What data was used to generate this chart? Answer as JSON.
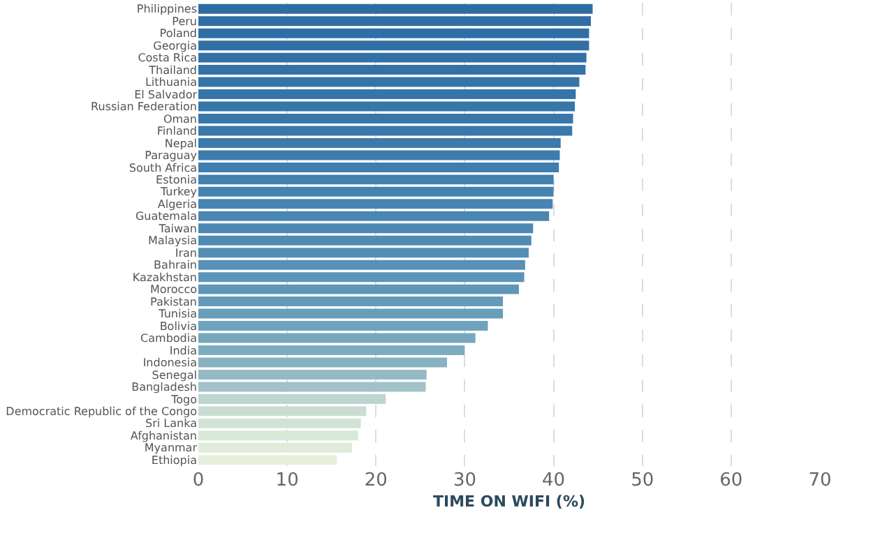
{
  "chart_data": {
    "type": "bar",
    "orientation": "horizontal",
    "xlabel": "TIME ON WIFI (%)",
    "categories": [
      "Philippines",
      "Peru",
      "Poland",
      "Georgia",
      "Costa Rica",
      "Thailand",
      "Lithuania",
      "El Salvador",
      "Russian Federation",
      "Oman",
      "Finland",
      "Nepal",
      "Paraguay",
      "South Africa",
      "Estonia",
      "Turkey",
      "Algeria",
      "Guatemala",
      "Taiwan",
      "Malaysia",
      "Iran",
      "Bahrain",
      "Kazakhstan",
      "Morocco",
      "Pakistan",
      "Tunisia",
      "Bolivia",
      "Cambodia",
      "India",
      "Indonesia",
      "Senegal",
      "Bangladesh",
      "Togo",
      "Democratic Republic of the Congo",
      "Sri Lanka",
      "Afghanistan",
      "Myanmar",
      "Ethiopia"
    ],
    "values": [
      44.4,
      44.2,
      44.0,
      44.0,
      43.7,
      43.6,
      42.9,
      42.5,
      42.4,
      42.2,
      42.1,
      40.8,
      40.7,
      40.6,
      40.0,
      40.0,
      39.9,
      39.5,
      37.7,
      37.5,
      37.2,
      36.8,
      36.7,
      36.1,
      34.3,
      34.3,
      32.6,
      31.2,
      30.0,
      28.0,
      25.7,
      25.6,
      21.1,
      18.9,
      18.3,
      18.0,
      17.3,
      15.6
    ],
    "colors": [
      "#2e6da4",
      "#2f6ea5",
      "#306fa5",
      "#3170a6",
      "#3271a7",
      "#3372a7",
      "#3474a8",
      "#3575a9",
      "#3676a9",
      "#3877aa",
      "#3978ab",
      "#3b7aac",
      "#3d7cad",
      "#3f7eae",
      "#4280af",
      "#4482b0",
      "#4784b1",
      "#4a86b2",
      "#4d89b3",
      "#508bb4",
      "#548eb5",
      "#5891b6",
      "#5c94b7",
      "#6097b8",
      "#649aba",
      "#699ebb",
      "#6fa2bc",
      "#76a7bd",
      "#7eacbf",
      "#88b2c1",
      "#94bac5",
      "#a0c2c8",
      "#bcd6cf",
      "#c9ddd3",
      "#d2e3d6",
      "#d9e7d8",
      "#e0ebda",
      "#e7efdc"
    ],
    "xlim": [
      0,
      70
    ],
    "xticks": [
      0,
      10,
      20,
      30,
      40,
      50,
      60,
      70
    ],
    "grid": "x",
    "legend": false
  }
}
